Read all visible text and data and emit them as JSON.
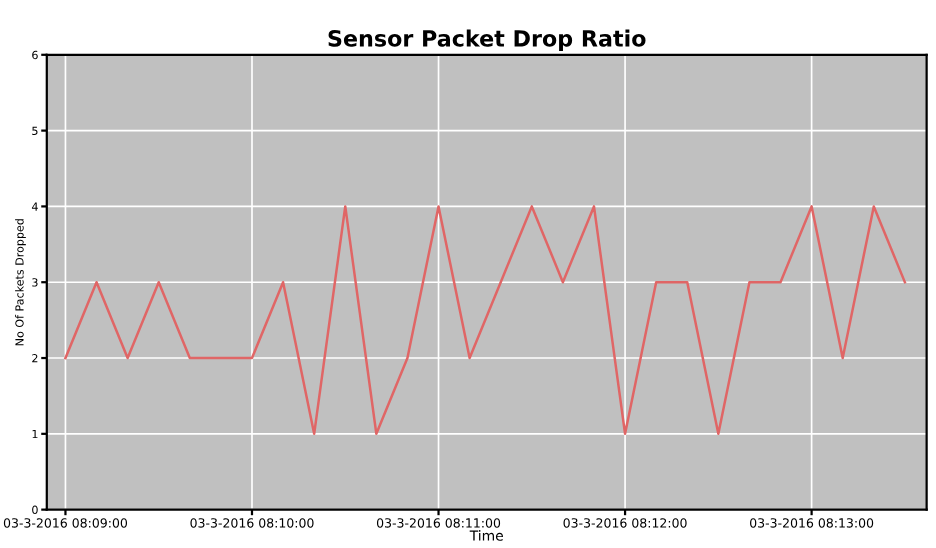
{
  "chart_data": {
    "type": "line",
    "title": "Sensor Packet Drop Ratio",
    "xlabel": "Time",
    "ylabel": "No Of Packets Dropped",
    "categories": [
      "03-3-2016 08:09:00",
      null,
      null,
      null,
      null,
      null,
      "03-3-2016 08:10:00",
      null,
      null,
      null,
      null,
      null,
      "03-3-2016 08:11:00",
      null,
      null,
      null,
      null,
      null,
      "03-3-2016 08:12:00",
      null,
      null,
      null,
      null,
      null,
      "03-3-2016 08:13:00",
      null,
      null,
      null
    ],
    "series": [
      {
        "color": "#e06666",
        "values": [
          2,
          3,
          2,
          3,
          2,
          2,
          2,
          3,
          1,
          4,
          1,
          2,
          4,
          2,
          3,
          4,
          3,
          4,
          1,
          3,
          3,
          1,
          3,
          3,
          4,
          2,
          4,
          3
        ]
      }
    ],
    "ylim": [
      0,
      6
    ],
    "yticks": [
      0,
      1,
      2,
      3,
      4,
      5,
      6
    ],
    "grid": true,
    "marker": "none",
    "line_style": "solid"
  }
}
